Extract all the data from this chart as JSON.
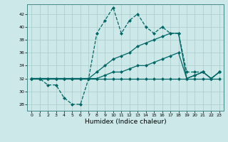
{
  "xlabel": "Humidex (Indice chaleur)",
  "xlim": [
    -0.5,
    23.5
  ],
  "ylim": [
    27,
    43.5
  ],
  "yticks": [
    28,
    30,
    32,
    34,
    36,
    38,
    40,
    42
  ],
  "xticks": [
    0,
    1,
    2,
    3,
    4,
    5,
    6,
    7,
    8,
    9,
    10,
    11,
    12,
    13,
    14,
    15,
    16,
    17,
    18,
    19,
    20,
    21,
    22,
    23
  ],
  "bg_color": "#cce8e8",
  "grid_color": "#aacccc",
  "series": [
    {
      "x": [
        0,
        1,
        2,
        3,
        4,
        5,
        6,
        7,
        8,
        9,
        10,
        11,
        12,
        13,
        14,
        15,
        16,
        17,
        18,
        19,
        20,
        21,
        22,
        23
      ],
      "y": [
        32,
        32,
        31,
        31,
        29,
        28,
        28,
        32,
        39,
        41,
        43,
        39,
        41,
        42,
        40,
        39,
        40,
        39,
        39,
        33,
        33,
        33,
        32,
        33
      ],
      "color": "#006666",
      "lw": 0.9,
      "ls": "--",
      "marker": "D",
      "ms": 2.0
    },
    {
      "x": [
        0,
        1,
        2,
        3,
        4,
        5,
        6,
        7,
        8,
        9,
        10,
        11,
        12,
        13,
        14,
        15,
        16,
        17,
        18,
        19,
        20,
        21,
        22,
        23
      ],
      "y": [
        32,
        32,
        32,
        32,
        32,
        32,
        32,
        32,
        32,
        32,
        32,
        32,
        32,
        32,
        32,
        32,
        32,
        32,
        32,
        32,
        32,
        32,
        32,
        32
      ],
      "color": "#006666",
      "lw": 0.9,
      "ls": "-",
      "marker": "D",
      "ms": 2.0
    },
    {
      "x": [
        0,
        1,
        2,
        3,
        4,
        5,
        6,
        7,
        8,
        9,
        10,
        11,
        12,
        13,
        14,
        15,
        16,
        17,
        18,
        19,
        20,
        21,
        22,
        23
      ],
      "y": [
        32,
        32,
        32,
        32,
        32,
        32,
        32,
        32,
        33,
        34,
        35,
        35.5,
        36,
        37,
        37.5,
        38,
        38.5,
        39,
        39,
        32,
        32.5,
        33,
        32,
        33
      ],
      "color": "#006666",
      "lw": 0.9,
      "ls": "-",
      "marker": "D",
      "ms": 2.0
    },
    {
      "x": [
        0,
        1,
        2,
        3,
        4,
        5,
        6,
        7,
        8,
        9,
        10,
        11,
        12,
        13,
        14,
        15,
        16,
        17,
        18,
        19,
        20,
        21,
        22,
        23
      ],
      "y": [
        32,
        32,
        32,
        32,
        32,
        32,
        32,
        32,
        32,
        32.5,
        33,
        33,
        33.5,
        34,
        34,
        34.5,
        35,
        35.5,
        36,
        32,
        32.5,
        33,
        32,
        33
      ],
      "color": "#006666",
      "lw": 0.9,
      "ls": "-",
      "marker": "D",
      "ms": 2.0
    }
  ]
}
